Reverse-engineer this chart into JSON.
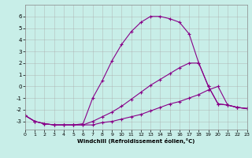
{
  "xlabel": "Windchill (Refroidissement éolien,°C)",
  "background_color": "#c8eee8",
  "grid_color": "#aaaaaa",
  "line_color": "#880088",
  "xlim": [
    0,
    23
  ],
  "ylim": [
    -3.7,
    7.0
  ],
  "xticks": [
    0,
    1,
    2,
    3,
    4,
    5,
    6,
    7,
    8,
    9,
    10,
    11,
    12,
    13,
    14,
    15,
    16,
    17,
    18,
    19,
    20,
    21,
    22,
    23
  ],
  "yticks": [
    -3,
    -2,
    -1,
    0,
    1,
    2,
    3,
    4,
    5,
    6
  ],
  "s1_x": [
    0,
    1,
    2,
    3,
    4,
    5,
    6,
    7,
    8,
    9,
    10,
    11,
    12,
    13,
    14,
    15,
    16,
    17,
    18,
    19,
    20,
    21,
    22,
    23
  ],
  "s1_y": [
    -2.5,
    -3.0,
    -3.2,
    -3.3,
    -3.3,
    -3.3,
    -3.3,
    -3.3,
    -3.1,
    -3.0,
    -2.8,
    -2.6,
    -2.4,
    -2.1,
    -1.8,
    -1.5,
    -1.3,
    -1.0,
    -0.7,
    -0.3,
    0.0,
    -1.6,
    -1.8,
    -1.9
  ],
  "s2_x": [
    0,
    1,
    2,
    3,
    4,
    5,
    6,
    7,
    8,
    9,
    10,
    11,
    12,
    13,
    14,
    15,
    16,
    17,
    18,
    19,
    20,
    21,
    22,
    23
  ],
  "s2_y": [
    -2.5,
    -3.0,
    -3.2,
    -3.3,
    -3.3,
    -3.3,
    -3.3,
    -3.0,
    -2.6,
    -2.2,
    -1.7,
    -1.1,
    -0.5,
    0.1,
    0.6,
    1.1,
    1.6,
    2.0,
    2.0,
    0.0,
    -1.5,
    -1.6,
    -1.8,
    -1.9
  ],
  "s3_x": [
    0,
    1,
    2,
    3,
    4,
    5,
    6,
    7,
    8,
    9,
    10,
    11,
    12,
    13,
    14,
    15,
    16,
    17,
    18,
    19,
    20,
    21,
    22,
    23
  ],
  "s3_y": [
    -2.5,
    -3.0,
    -3.2,
    -3.3,
    -3.3,
    -3.3,
    -3.2,
    -1.0,
    0.5,
    2.2,
    3.6,
    4.7,
    5.5,
    6.0,
    6.0,
    5.8,
    5.5,
    4.5,
    2.0,
    0.0,
    -1.5,
    -1.6,
    -1.8,
    -1.9
  ]
}
